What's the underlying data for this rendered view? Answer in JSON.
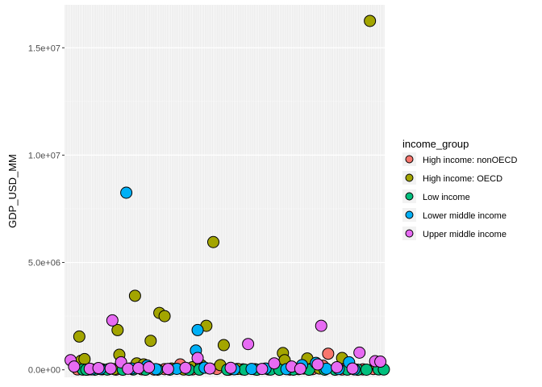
{
  "chart_data": {
    "type": "scatter",
    "title": "",
    "xlabel": "",
    "ylabel": "GDP_USD_MM",
    "ylim": [
      -350000,
      17000000
    ],
    "y_ticks": [
      0,
      5000000,
      10000000,
      15000000
    ],
    "y_tick_labels": [
      "0.0e+00",
      "5.0e+06",
      "1.0e+07",
      "1.5e+07"
    ],
    "x_axis_labels_visible": false,
    "xlim": [
      0.5,
      184.5
    ],
    "grid": true,
    "legend": {
      "title": "income_group",
      "position": "right"
    },
    "series": [
      {
        "name": "High income: nonOECD",
        "color": "#F8766D",
        "points": [
          {
            "x": 8,
            "y": 20000
          },
          {
            "x": 14,
            "y": 15000
          },
          {
            "x": 26,
            "y": 30000
          },
          {
            "x": 30,
            "y": 10000
          },
          {
            "x": 38,
            "y": 60000
          },
          {
            "x": 45,
            "y": 25000
          },
          {
            "x": 52,
            "y": 12000
          },
          {
            "x": 58,
            "y": 30000
          },
          {
            "x": 67,
            "y": 250000
          },
          {
            "x": 74,
            "y": 20000
          },
          {
            "x": 88,
            "y": 40000
          },
          {
            "x": 95,
            "y": 8000
          },
          {
            "x": 103,
            "y": 20000
          },
          {
            "x": 118,
            "y": 15000
          },
          {
            "x": 130,
            "y": 12000
          },
          {
            "x": 138,
            "y": 60000
          },
          {
            "x": 143,
            "y": 30000
          },
          {
            "x": 149,
            "y": 190000
          },
          {
            "x": 152,
            "y": 750000
          },
          {
            "x": 160,
            "y": 15000
          },
          {
            "x": 172,
            "y": 20000
          },
          {
            "x": 178,
            "y": 35000
          }
        ]
      },
      {
        "name": "High income: OECD",
        "color": "#A3A500",
        "points": [
          {
            "x": 9,
            "y": 1550000
          },
          {
            "x": 10,
            "y": 420000
          },
          {
            "x": 12,
            "y": 500000
          },
          {
            "x": 22,
            "y": 25000
          },
          {
            "x": 29,
            "y": 30000
          },
          {
            "x": 31,
            "y": 1850000
          },
          {
            "x": 32,
            "y": 700000
          },
          {
            "x": 41,
            "y": 3450000
          },
          {
            "x": 42,
            "y": 300000
          },
          {
            "x": 46,
            "y": 250000
          },
          {
            "x": 50,
            "y": 1350000
          },
          {
            "x": 55,
            "y": 2650000
          },
          {
            "x": 58,
            "y": 2500000
          },
          {
            "x": 62,
            "y": 60000
          },
          {
            "x": 69,
            "y": 15000
          },
          {
            "x": 74,
            "y": 120000
          },
          {
            "x": 79,
            "y": 220000
          },
          {
            "x": 82,
            "y": 2050000
          },
          {
            "x": 86,
            "y": 5950000
          },
          {
            "x": 90,
            "y": 220000
          },
          {
            "x": 92,
            "y": 1150000
          },
          {
            "x": 100,
            "y": 40000
          },
          {
            "x": 110,
            "y": 25000
          },
          {
            "x": 125,
            "y": 220000
          },
          {
            "x": 126,
            "y": 780000
          },
          {
            "x": 127,
            "y": 450000
          },
          {
            "x": 135,
            "y": 30000
          },
          {
            "x": 140,
            "y": 530000
          },
          {
            "x": 147,
            "y": 60000
          },
          {
            "x": 160,
            "y": 550000
          },
          {
            "x": 176,
            "y": 16250000
          },
          {
            "x": 180,
            "y": 210000
          },
          {
            "x": 183,
            "y": 60000
          }
        ]
      },
      {
        "name": "Low income",
        "color": "#00BF7D",
        "points": [
          {
            "x": 11,
            "y": 10000
          },
          {
            "x": 13,
            "y": 5000
          },
          {
            "x": 18,
            "y": 8000
          },
          {
            "x": 25,
            "y": 12000
          },
          {
            "x": 34,
            "y": 6000
          },
          {
            "x": 40,
            "y": 15000
          },
          {
            "x": 47,
            "y": 5000
          },
          {
            "x": 54,
            "y": 9000
          },
          {
            "x": 61,
            "y": 7000
          },
          {
            "x": 72,
            "y": 4000
          },
          {
            "x": 78,
            "y": 10000
          },
          {
            "x": 94,
            "y": 6000
          },
          {
            "x": 104,
            "y": 8000
          },
          {
            "x": 111,
            "y": 5000
          },
          {
            "x": 119,
            "y": 12000
          },
          {
            "x": 124,
            "y": 4000
          },
          {
            "x": 132,
            "y": 9000
          },
          {
            "x": 141,
            "y": 6000
          },
          {
            "x": 150,
            "y": 7000
          },
          {
            "x": 156,
            "y": 5000
          },
          {
            "x": 163,
            "y": 11000
          },
          {
            "x": 169,
            "y": 4000
          },
          {
            "x": 174,
            "y": 8000
          },
          {
            "x": 181,
            "y": 20000
          },
          {
            "x": 184,
            "y": 15000
          }
        ]
      },
      {
        "name": "Lower middle income",
        "color": "#00B0F6",
        "points": [
          {
            "x": 16,
            "y": 20000
          },
          {
            "x": 21,
            "y": 35000
          },
          {
            "x": 36,
            "y": 8250000
          },
          {
            "x": 39,
            "y": 60000
          },
          {
            "x": 48,
            "y": 200000
          },
          {
            "x": 53,
            "y": 30000
          },
          {
            "x": 65,
            "y": 45000
          },
          {
            "x": 76,
            "y": 900000
          },
          {
            "x": 77,
            "y": 1850000
          },
          {
            "x": 81,
            "y": 100000
          },
          {
            "x": 98,
            "y": 25000
          },
          {
            "x": 108,
            "y": 40000
          },
          {
            "x": 116,
            "y": 60000
          },
          {
            "x": 128,
            "y": 30000
          },
          {
            "x": 137,
            "y": 220000
          },
          {
            "x": 145,
            "y": 320000
          },
          {
            "x": 151,
            "y": 50000
          },
          {
            "x": 158,
            "y": 35000
          },
          {
            "x": 164,
            "y": 350000
          },
          {
            "x": 167,
            "y": 20000
          }
        ]
      },
      {
        "name": "Upper middle income",
        "color": "#E76BF3",
        "points": [
          {
            "x": 4,
            "y": 450000
          },
          {
            "x": 6,
            "y": 150000
          },
          {
            "x": 15,
            "y": 50000
          },
          {
            "x": 20,
            "y": 80000
          },
          {
            "x": 27,
            "y": 60000
          },
          {
            "x": 28,
            "y": 2300000
          },
          {
            "x": 33,
            "y": 350000
          },
          {
            "x": 37,
            "y": 50000
          },
          {
            "x": 43,
            "y": 80000
          },
          {
            "x": 49,
            "y": 120000
          },
          {
            "x": 60,
            "y": 40000
          },
          {
            "x": 70,
            "y": 90000
          },
          {
            "x": 77,
            "y": 550000
          },
          {
            "x": 84,
            "y": 60000
          },
          {
            "x": 96,
            "y": 90000
          },
          {
            "x": 106,
            "y": 1200000
          },
          {
            "x": 114,
            "y": 40000
          },
          {
            "x": 121,
            "y": 300000
          },
          {
            "x": 131,
            "y": 150000
          },
          {
            "x": 136,
            "y": 50000
          },
          {
            "x": 146,
            "y": 250000
          },
          {
            "x": 148,
            "y": 2050000
          },
          {
            "x": 157,
            "y": 120000
          },
          {
            "x": 166,
            "y": 60000
          },
          {
            "x": 170,
            "y": 800000
          },
          {
            "x": 179,
            "y": 400000
          },
          {
            "x": 182,
            "y": 380000
          }
        ]
      }
    ]
  }
}
